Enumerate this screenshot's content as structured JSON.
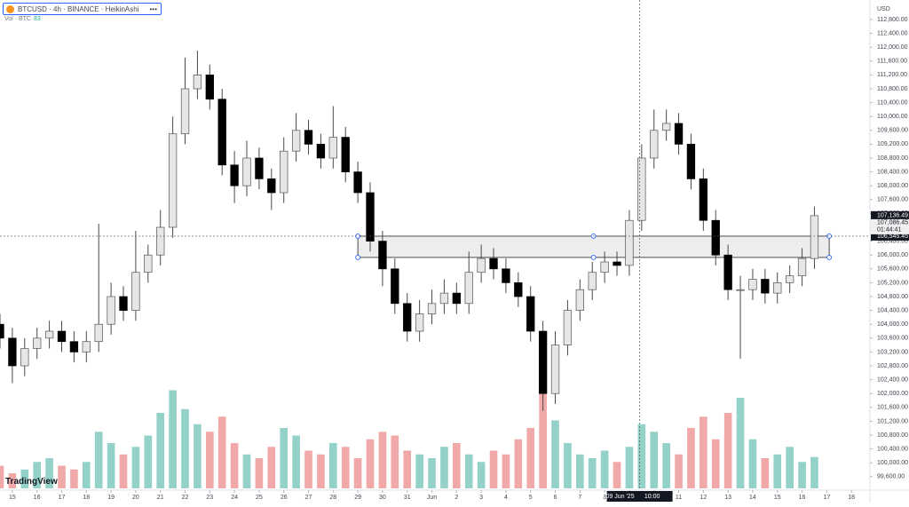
{
  "chart_data": {
    "type": "candlestick",
    "symbol_title": "BTCUSD · 4h · BINANCE · HeikinAshi",
    "volume_title": "Vol · BTC",
    "currency": "USD",
    "brand": "TradingView",
    "x": [
      14.5,
      15,
      15.5,
      16,
      16.5,
      17,
      17.5,
      18,
      18.5,
      19,
      19.5,
      20,
      20.5,
      21,
      21.5,
      22,
      22.5,
      23,
      23.5,
      24,
      24.5,
      25,
      25.5,
      26,
      26.5,
      27,
      27.5,
      28,
      28.5,
      29,
      29.5,
      30,
      30.5,
      31,
      31.5,
      32,
      32.5,
      33,
      33.5,
      34,
      34.5,
      35,
      35.5,
      36,
      36.5,
      37,
      37.5,
      38,
      38.5,
      39,
      39.5,
      40,
      40.5,
      41,
      41.5,
      42,
      42.5,
      43,
      43.5,
      44,
      44.5,
      45,
      45.5,
      46,
      46.5,
      47,
      47.5
    ],
    "open": [
      104000,
      103600,
      102800,
      103300,
      103600,
      103800,
      103500,
      103200,
      103500,
      104000,
      104800,
      104400,
      105500,
      106000,
      106800,
      109500,
      110800,
      111200,
      110500,
      108600,
      108000,
      108800,
      108200,
      107800,
      109000,
      109600,
      109200,
      108800,
      109400,
      108400,
      107800,
      106400,
      105600,
      104600,
      103800,
      104300,
      104600,
      104900,
      104600,
      105500,
      105900,
      105600,
      105200,
      104800,
      103800,
      102000,
      103400,
      104400,
      105000,
      105500,
      105800,
      105700,
      107000,
      108800,
      109600,
      109800,
      109200,
      108200,
      107000,
      106000,
      105000,
      105000,
      105300,
      104900,
      105200,
      105400,
      105900
    ],
    "high": [
      104300,
      103900,
      103600,
      103900,
      104100,
      104100,
      103800,
      103800,
      106900,
      105200,
      105100,
      106700,
      106300,
      107300,
      110000,
      111700,
      111900,
      111500,
      110800,
      109000,
      109300,
      109100,
      108500,
      109400,
      110100,
      109900,
      109500,
      110300,
      109700,
      108700,
      108100,
      106700,
      105900,
      104900,
      104700,
      105000,
      105300,
      105200,
      106100,
      106300,
      106200,
      105900,
      105500,
      105100,
      104100,
      103800,
      104700,
      105300,
      105800,
      106100,
      106100,
      107300,
      109200,
      110200,
      110200,
      110100,
      109500,
      108500,
      107300,
      106300,
      105400,
      105600,
      105600,
      105500,
      105700,
      106200,
      107400
    ],
    "low": [
      103300,
      102300,
      102500,
      103000,
      103300,
      103200,
      102900,
      102900,
      103200,
      103700,
      104100,
      104100,
      105200,
      105700,
      106500,
      109200,
      110500,
      110200,
      108300,
      107500,
      107700,
      107900,
      107300,
      107500,
      108700,
      108900,
      108500,
      108500,
      108100,
      107500,
      106100,
      105100,
      104300,
      103500,
      103500,
      104000,
      104300,
      104300,
      104300,
      105200,
      105300,
      104900,
      104500,
      103500,
      101500,
      101700,
      103100,
      104100,
      104700,
      105200,
      105400,
      105400,
      106700,
      108500,
      109300,
      108900,
      107900,
      106700,
      105700,
      104700,
      103000,
      104700,
      104600,
      104600,
      104900,
      105100,
      105600
    ],
    "close": [
      103600,
      102800,
      103300,
      103600,
      103800,
      103500,
      103200,
      103500,
      104000,
      104800,
      104400,
      105500,
      106000,
      106800,
      109500,
      110800,
      111200,
      110500,
      108600,
      108000,
      108800,
      108200,
      107800,
      109000,
      109600,
      109200,
      108800,
      109400,
      108400,
      107800,
      106400,
      105600,
      104600,
      103800,
      104300,
      104600,
      104900,
      104600,
      105500,
      105900,
      105600,
      105200,
      104800,
      103800,
      102000,
      103400,
      104400,
      105000,
      105500,
      105800,
      105700,
      107000,
      108800,
      109600,
      109800,
      109200,
      108200,
      107000,
      106000,
      105000,
      105000,
      105300,
      104900,
      105200,
      105400,
      105900,
      107136.49
    ],
    "volume": [
      60,
      40,
      50,
      70,
      80,
      60,
      50,
      70,
      150,
      120,
      90,
      110,
      140,
      200,
      260,
      210,
      170,
      150,
      190,
      120,
      90,
      80,
      110,
      160,
      140,
      100,
      90,
      120,
      110,
      80,
      130,
      150,
      140,
      100,
      90,
      80,
      110,
      120,
      90,
      70,
      100,
      90,
      130,
      160,
      280,
      180,
      120,
      90,
      80,
      100,
      70,
      110,
      170,
      150,
      120,
      90,
      160,
      190,
      130,
      200,
      240,
      130,
      80,
      90,
      110,
      70,
      83
    ],
    "volume_lim": [
      0,
      400
    ],
    "up_color": "#e6e6e6",
    "down_color": "#000000",
    "wick_color": "#4a4a4a",
    "volume_up_color": "#93d1c9",
    "volume_down_color": "#f0a8a8",
    "xlim": [
      14.5,
      49.75
    ],
    "xticks": [
      15,
      16,
      17,
      18,
      19,
      20,
      21,
      22,
      23,
      24,
      25,
      26,
      27,
      28,
      29,
      30,
      31,
      {
        "value": 32,
        "label": "Jun"
      },
      {
        "value": 33,
        "label": "2"
      },
      {
        "value": 34,
        "label": "3"
      },
      {
        "value": 35,
        "label": "4"
      },
      {
        "value": 36,
        "label": "5"
      },
      {
        "value": 37,
        "label": "6"
      },
      {
        "value": 38,
        "label": "7"
      },
      {
        "value": 39,
        "label": "8"
      },
      {
        "value": 40,
        "label": "9"
      },
      {
        "value": 41,
        "label": "10"
      },
      {
        "value": 42,
        "label": "11"
      },
      {
        "value": 43,
        "label": "12"
      },
      {
        "value": 44,
        "label": "13"
      },
      {
        "value": 45,
        "label": "14"
      },
      {
        "value": 46,
        "label": "15"
      },
      {
        "value": 47,
        "label": "16"
      },
      {
        "value": 48,
        "label": "17"
      },
      {
        "value": 49,
        "label": "18"
      }
    ],
    "ylim": [
      99262,
      113364
    ],
    "yticks": [
      {
        "value": 99600,
        "label": "99,600.00"
      },
      {
        "value": 100000,
        "label": "100,000.00"
      },
      {
        "value": 100400,
        "label": "100,400.00"
      },
      {
        "value": 100800,
        "label": "100,800.00"
      },
      {
        "value": 101200,
        "label": "101,200.00"
      },
      {
        "value": 101600,
        "label": "101,600.00"
      },
      {
        "value": 102000,
        "label": "102,000.00"
      },
      {
        "value": 102400,
        "label": "102,400.00"
      },
      {
        "value": 102800,
        "label": "102,800.00"
      },
      {
        "value": 103200,
        "label": "103,200.00"
      },
      {
        "value": 103600,
        "label": "103,600.00"
      },
      {
        "value": 104000,
        "label": "104,000.00"
      },
      {
        "value": 104400,
        "label": "104,400.00"
      },
      {
        "value": 104800,
        "label": "104,800.00"
      },
      {
        "value": 105200,
        "label": "105,200.00"
      },
      {
        "value": 105600,
        "label": "105,600.00"
      },
      {
        "value": 106000,
        "label": "106,000.00"
      },
      {
        "value": 106400,
        "label": "106,400.00"
      },
      {
        "value": 106800,
        "label": "106,800.00"
      },
      {
        "value": 107200,
        "label": "107,200.00"
      },
      {
        "value": 107600,
        "label": "107,600.00"
      },
      {
        "value": 108000,
        "label": "108,000.00"
      },
      {
        "value": 108400,
        "label": "108,400.00"
      },
      {
        "value": 108800,
        "label": "108,800.00"
      },
      {
        "value": 109200,
        "label": "109,200.00"
      },
      {
        "value": 109600,
        "label": "109,600.00"
      },
      {
        "value": 110000,
        "label": "110,000.00"
      },
      {
        "value": 110400,
        "label": "110,400.00"
      },
      {
        "value": 110800,
        "label": "110,800.00"
      },
      {
        "value": 111200,
        "label": "111,200.00"
      },
      {
        "value": 111600,
        "label": "111,600.00"
      },
      {
        "value": 112000,
        "label": "112,000.00"
      },
      {
        "value": 112400,
        "label": "112,400.00"
      },
      {
        "value": 112800,
        "label": "112,800.00"
      }
    ],
    "grid": false,
    "price_labels": [
      "107,136.49",
      "107,086.45",
      "01:44:41"
    ],
    "zone": {
      "x": [
        29,
        48.1
      ],
      "y": [
        105930,
        106545.45
      ],
      "color": "#e8e8e8"
    },
    "crosshair": {
      "x": 40.42,
      "x_label": "Mo 09 Jun '25",
      "x_time": "10:00",
      "y": {
        "value": 106545.45,
        "label": "106,545.45"
      }
    }
  }
}
